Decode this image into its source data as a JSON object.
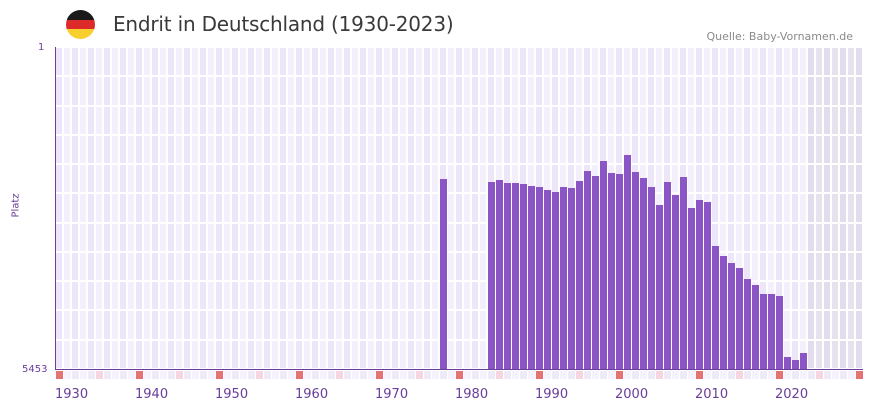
{
  "header": {
    "title": "Endrit in Deutschland (1930-2023)",
    "source": "Quelle: Baby-Vornamen.de",
    "flag_colors": [
      "#1a1a1a",
      "#dd2a2a",
      "#f7cf2e"
    ]
  },
  "colors": {
    "bar": "#8b55c6",
    "axis": "#6a3d9a",
    "decade_marker": "#e57373",
    "half_decade_marker": "#f6d6e0"
  },
  "chart_data": {
    "type": "bar",
    "title": "Endrit in Deutschland (1930-2023)",
    "xlabel": "",
    "ylabel": "Platz",
    "y_inverted": true,
    "ylim": [
      1,
      5453
    ],
    "y_ticks": [
      "1",
      "5453"
    ],
    "x_ticks": [
      "1930",
      "1940",
      "1950",
      "1960",
      "1970",
      "1980",
      "1990",
      "2000",
      "2010",
      "2020"
    ],
    "grid": true,
    "categories": [
      1978,
      1984,
      1985,
      1986,
      1987,
      1988,
      1989,
      1990,
      1991,
      1992,
      1993,
      1994,
      1995,
      1996,
      1997,
      1998,
      1999,
      2000,
      2001,
      2002,
      2003,
      2004,
      2005,
      2006,
      2007,
      2008,
      2009,
      2010,
      2011,
      2012,
      2013,
      2014,
      2015,
      2016,
      2017,
      2018,
      2019,
      2020,
      2021,
      2022,
      2023
    ],
    "series": [
      {
        "name": "Platz",
        "values": [
          2234,
          2285,
          2251,
          2302,
          2302,
          2319,
          2353,
          2370,
          2420,
          2454,
          2370,
          2387,
          2268,
          2099,
          2183,
          1930,
          2133,
          2150,
          1828,
          2116,
          2217,
          2370,
          2675,
          2285,
          2505,
          2200,
          2726,
          2590,
          2624,
          3369,
          3538,
          3657,
          3742,
          3928,
          4030,
          4182,
          4182,
          4216,
          5255,
          5294,
          5187
        ]
      }
    ]
  }
}
